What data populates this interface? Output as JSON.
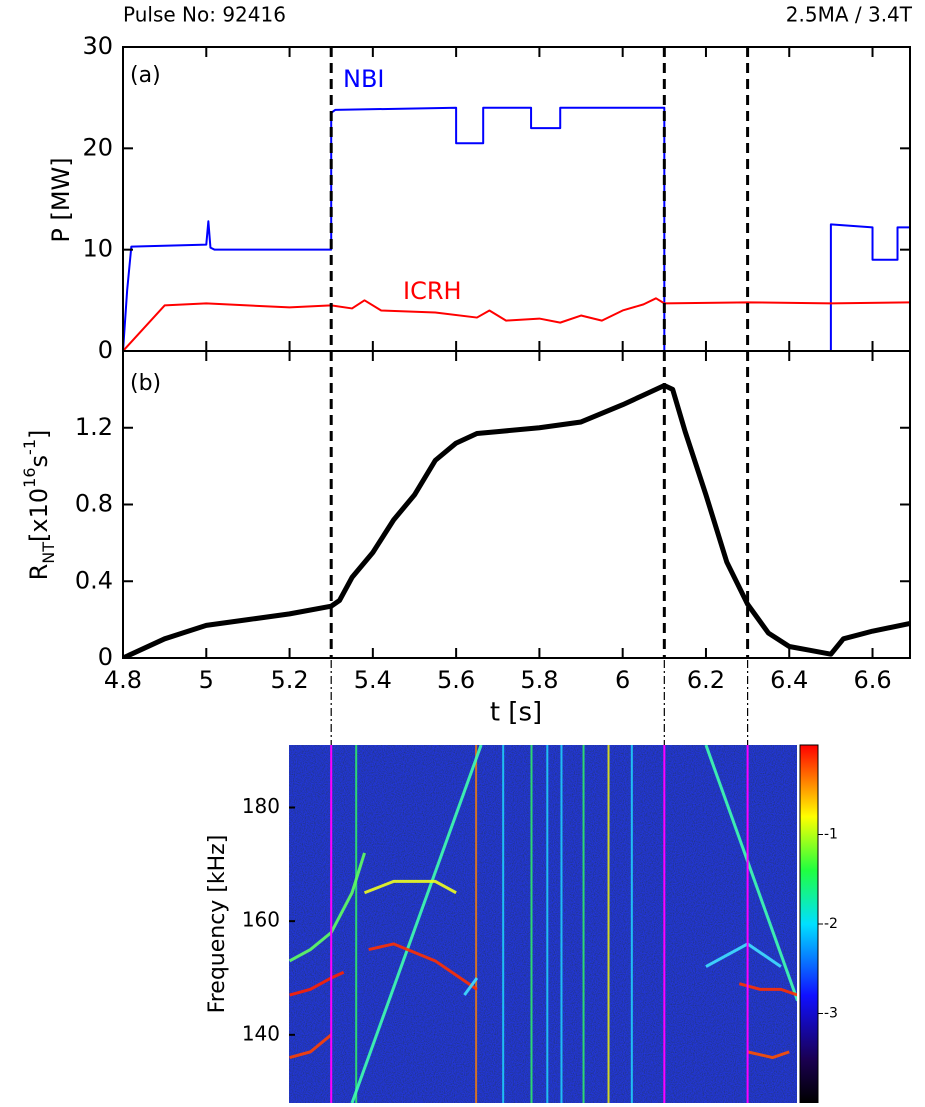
{
  "chart_data": [
    {
      "type": "line",
      "title_left": "Pulse No: 92416",
      "title_right": "2.5MA / 3.4T",
      "panel_label": "(a)",
      "ylabel": "P [MW]",
      "ylim": [
        0,
        30
      ],
      "yticks": [
        0,
        10,
        20,
        30
      ],
      "vlines": [
        5.3,
        6.1,
        6.3
      ],
      "series": [
        {
          "name": "NBI",
          "color": "#0000ff",
          "x": [
            4.8,
            4.81,
            4.82,
            5.0,
            5.005,
            5.01,
            5.02,
            5.3,
            5.3,
            5.31,
            5.6,
            5.6,
            5.665,
            5.665,
            5.78,
            5.78,
            5.85,
            5.85,
            6.1,
            6.1,
            6.5,
            6.5,
            6.6,
            6.6,
            6.66,
            6.66,
            6.69
          ],
          "values": [
            0,
            6,
            10.3,
            10.5,
            12.8,
            10.2,
            10,
            10,
            23.5,
            23.8,
            24,
            20.5,
            20.5,
            24,
            24,
            22,
            22,
            24,
            24,
            0,
            0,
            12.5,
            12.2,
            9,
            9,
            12.2,
            12.2
          ]
        },
        {
          "name": "ICRH",
          "color": "#ff0000",
          "x": [
            4.8,
            4.9,
            5.0,
            5.2,
            5.3,
            5.35,
            5.38,
            5.42,
            5.55,
            5.65,
            5.68,
            5.72,
            5.8,
            5.85,
            5.9,
            5.95,
            6.0,
            6.05,
            6.08,
            6.1,
            6.3,
            6.5,
            6.69
          ],
          "values": [
            0,
            4.5,
            4.7,
            4.3,
            4.5,
            4.2,
            5.0,
            4.0,
            3.8,
            3.3,
            4.0,
            3.0,
            3.2,
            2.8,
            3.5,
            3.0,
            4.0,
            4.6,
            5.2,
            4.7,
            4.8,
            4.7,
            4.8
          ]
        }
      ]
    },
    {
      "type": "line",
      "panel_label": "(b)",
      "ylabel_parts": [
        {
          "text": "R"
        },
        {
          "text": "NT",
          "shift": "sub"
        },
        {
          "text": "[x10"
        },
        {
          "text": "16",
          "shift": "super"
        },
        {
          "text": "s"
        },
        {
          "text": "-1",
          "shift": "super"
        },
        {
          "text": "]"
        }
      ],
      "xlabel": "t [s]",
      "xlim": [
        4.8,
        6.69
      ],
      "xticks": [
        4.8,
        5,
        5.2,
        5.4,
        5.6,
        5.8,
        6,
        6.2,
        6.4,
        6.6
      ],
      "ylim": [
        0,
        1.6
      ],
      "yticks": [
        0,
        0.4,
        0.8,
        1.2
      ],
      "series": [
        {
          "color": "#000000",
          "x": [
            4.8,
            4.9,
            5.0,
            5.1,
            5.2,
            5.3,
            5.32,
            5.35,
            5.4,
            5.45,
            5.5,
            5.55,
            5.6,
            5.65,
            5.7,
            5.8,
            5.9,
            6.0,
            6.05,
            6.1,
            6.12,
            6.15,
            6.2,
            6.25,
            6.3,
            6.35,
            6.4,
            6.45,
            6.5,
            6.53,
            6.6,
            6.69
          ],
          "values": [
            0,
            0.1,
            0.17,
            0.2,
            0.23,
            0.27,
            0.3,
            0.42,
            0.55,
            0.72,
            0.85,
            1.03,
            1.12,
            1.17,
            1.18,
            1.2,
            1.23,
            1.32,
            1.37,
            1.42,
            1.4,
            1.18,
            0.85,
            0.5,
            0.28,
            0.13,
            0.06,
            0.04,
            0.02,
            0.1,
            0.14,
            0.18
          ]
        }
      ]
    },
    {
      "type": "spectrogram",
      "ylabel": "Frequency [kHz]",
      "xlim": [
        5.2,
        6.42
      ],
      "ylim": [
        128,
        191
      ],
      "yticks": [
        140,
        160,
        180
      ],
      "clim": [
        -4,
        0
      ],
      "cticks": [
        -1,
        -2,
        -3
      ],
      "bursts": {
        "t": [
          5.36,
          5.648,
          5.713,
          5.781,
          5.819,
          5.853,
          5.906,
          5.966,
          6.022
        ],
        "colors": [
          "#30ff60",
          "#ff8000",
          "#20e0ff",
          "#30ff60",
          "#20e0ff",
          "#20e0ff",
          "#30ff60",
          "#ffff00",
          "#20e0ff"
        ]
      },
      "modes": [
        {
          "color": "#40ffb0",
          "t": [
            5.35,
            5.66
          ],
          "f": [
            128,
            191
          ]
        },
        {
          "color": "#40ffb0",
          "t": [
            6.2,
            6.42
          ],
          "f": [
            191,
            146
          ]
        },
        {
          "color": "#ff3000",
          "t": [
            5.39,
            5.45,
            5.55,
            5.65
          ],
          "f": [
            155,
            156,
            153,
            148
          ]
        },
        {
          "color": "#f0ff20",
          "t": [
            5.38,
            5.45,
            5.55,
            5.6
          ],
          "f": [
            165,
            167,
            167,
            165
          ]
        },
        {
          "color": "#ff2000",
          "t": [
            5.2,
            5.25,
            5.3,
            5.33
          ],
          "f": [
            147,
            148,
            150,
            151
          ]
        },
        {
          "color": "#ff4000",
          "t": [
            5.2,
            5.25,
            5.3
          ],
          "f": [
            136,
            137,
            140
          ]
        },
        {
          "color": "#60ff60",
          "t": [
            5.2,
            5.25,
            5.3,
            5.35,
            5.38
          ],
          "f": [
            153,
            155,
            158,
            165,
            172
          ]
        },
        {
          "color": "#ff3000",
          "t": [
            6.28,
            6.33,
            6.38,
            6.42
          ],
          "f": [
            149,
            148,
            148,
            147
          ]
        },
        {
          "color": "#ff5000",
          "t": [
            6.3,
            6.36,
            6.4
          ],
          "f": [
            137,
            136,
            137
          ]
        },
        {
          "color": "#40e0ff",
          "t": [
            6.2,
            6.3,
            6.38
          ],
          "f": [
            152,
            156,
            152
          ]
        },
        {
          "color": "#40e0ff",
          "t": [
            5.62,
            5.65
          ],
          "f": [
            147,
            150
          ]
        }
      ]
    }
  ]
}
